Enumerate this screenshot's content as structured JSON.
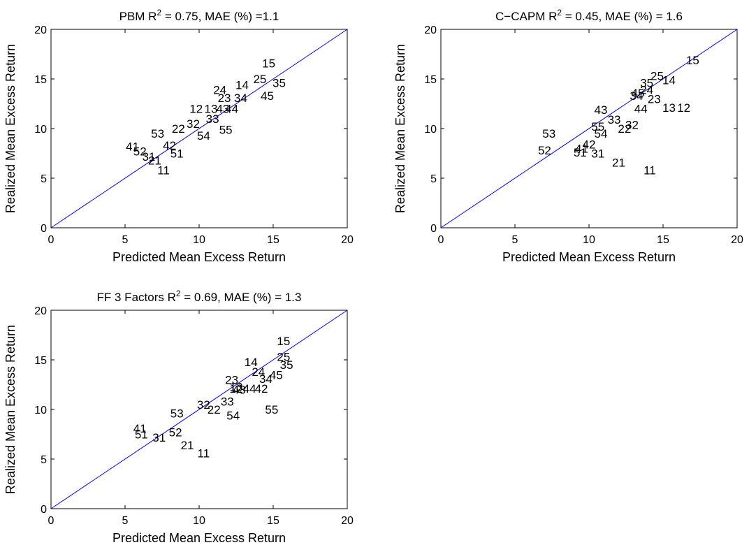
{
  "window": {
    "title": ""
  },
  "chart_data": [
    {
      "type": "scatter",
      "title": {
        "pre": "PBM R",
        "sup": "2",
        "post": " = 0.75,  MAE (%) =1.1"
      },
      "xlabel": "Predicted Mean Excess Return",
      "ylabel": "Realized Mean Excess Return",
      "xlim": [
        0,
        20
      ],
      "ylim": [
        0,
        20
      ],
      "xticks": [
        "0",
        "5",
        "10",
        "15",
        "20"
      ],
      "yticks": [
        "0",
        "5",
        "10",
        "15",
        "20"
      ],
      "reference_line": "45-degree",
      "line_color": "#0000ff",
      "grid": false,
      "points": [
        {
          "label": "11",
          "x": 7.6,
          "y": 5.8
        },
        {
          "label": "12",
          "x": 9.8,
          "y": 12.0
        },
        {
          "label": "13",
          "x": 10.8,
          "y": 12.0
        },
        {
          "label": "14",
          "x": 12.9,
          "y": 14.4
        },
        {
          "label": "15",
          "x": 14.7,
          "y": 16.6
        },
        {
          "label": "21",
          "x": 7.0,
          "y": 6.8
        },
        {
          "label": "22",
          "x": 8.6,
          "y": 10.0
        },
        {
          "label": "23",
          "x": 11.7,
          "y": 13.1
        },
        {
          "label": "24",
          "x": 11.4,
          "y": 13.9
        },
        {
          "label": "25",
          "x": 14.1,
          "y": 15.0
        },
        {
          "label": "31",
          "x": 6.6,
          "y": 7.2
        },
        {
          "label": "32",
          "x": 9.6,
          "y": 10.5
        },
        {
          "label": "33",
          "x": 10.9,
          "y": 11.0
        },
        {
          "label": "34",
          "x": 12.8,
          "y": 13.1
        },
        {
          "label": "35",
          "x": 15.4,
          "y": 14.6
        },
        {
          "label": "41",
          "x": 5.5,
          "y": 8.2
        },
        {
          "label": "42",
          "x": 8.0,
          "y": 8.3
        },
        {
          "label": "43",
          "x": 11.6,
          "y": 12.0
        },
        {
          "label": "44",
          "x": 12.2,
          "y": 12.0
        },
        {
          "label": "45",
          "x": 14.6,
          "y": 13.3
        },
        {
          "label": "51",
          "x": 8.5,
          "y": 7.5
        },
        {
          "label": "52",
          "x": 6.0,
          "y": 7.7
        },
        {
          "label": "53",
          "x": 7.2,
          "y": 9.5
        },
        {
          "label": "54",
          "x": 10.3,
          "y": 9.3
        },
        {
          "label": "55",
          "x": 11.8,
          "y": 9.9
        }
      ]
    },
    {
      "type": "scatter",
      "title": {
        "pre": "C−CAPM R",
        "sup": "2",
        "post": " = 0.45,  MAE (%) = 1.6"
      },
      "xlabel": "Predicted Mean Excess Return",
      "ylabel": "Realized Mean Excess Return",
      "xlim": [
        0,
        20
      ],
      "ylim": [
        0,
        20
      ],
      "xticks": [
        "0",
        "5",
        "10",
        "15",
        "20"
      ],
      "yticks": [
        "0",
        "5",
        "10",
        "15",
        "20"
      ],
      "reference_line": "45-degree",
      "line_color": "#0000ff",
      "grid": false,
      "points": [
        {
          "label": "11",
          "x": 14.1,
          "y": 5.8
        },
        {
          "label": "12",
          "x": 16.4,
          "y": 12.1
        },
        {
          "label": "13",
          "x": 15.4,
          "y": 12.1
        },
        {
          "label": "14",
          "x": 15.4,
          "y": 14.9
        },
        {
          "label": "15",
          "x": 17.0,
          "y": 16.9
        },
        {
          "label": "21",
          "x": 12.0,
          "y": 6.6
        },
        {
          "label": "22",
          "x": 12.4,
          "y": 10.0
        },
        {
          "label": "23",
          "x": 14.4,
          "y": 13.0
        },
        {
          "label": "24",
          "x": 13.9,
          "y": 13.9
        },
        {
          "label": "25",
          "x": 14.6,
          "y": 15.3
        },
        {
          "label": "31",
          "x": 10.6,
          "y": 7.5
        },
        {
          "label": "32",
          "x": 12.9,
          "y": 10.4
        },
        {
          "label": "33",
          "x": 11.7,
          "y": 10.9
        },
        {
          "label": "34",
          "x": 13.2,
          "y": 13.3
        },
        {
          "label": "35",
          "x": 13.9,
          "y": 14.6
        },
        {
          "label": "41",
          "x": 9.5,
          "y": 8.0
        },
        {
          "label": "42",
          "x": 10.0,
          "y": 8.4
        },
        {
          "label": "43",
          "x": 10.8,
          "y": 11.9
        },
        {
          "label": "44",
          "x": 13.5,
          "y": 12.0
        },
        {
          "label": "45",
          "x": 13.3,
          "y": 13.6
        },
        {
          "label": "51",
          "x": 9.4,
          "y": 7.6
        },
        {
          "label": "52",
          "x": 7.0,
          "y": 7.8
        },
        {
          "label": "53",
          "x": 7.3,
          "y": 9.5
        },
        {
          "label": "54",
          "x": 10.8,
          "y": 9.5
        },
        {
          "label": "55",
          "x": 10.6,
          "y": 10.2
        }
      ]
    },
    {
      "type": "scatter",
      "title": {
        "pre": "FF 3 Factors R",
        "sup": "2",
        "post": " = 0.69,  MAE (%) = 1.3"
      },
      "xlabel": "Predicted Mean Excess Return",
      "ylabel": "Realized Mean Excess Return",
      "xlim": [
        0,
        20
      ],
      "ylim": [
        0,
        20
      ],
      "xticks": [
        "0",
        "5",
        "10",
        "15",
        "20"
      ],
      "yticks": [
        "0",
        "5",
        "10",
        "15",
        "20"
      ],
      "reference_line": "45-degree",
      "line_color": "#0000ff",
      "grid": false,
      "points": [
        {
          "label": "11",
          "x": 10.3,
          "y": 5.6
        },
        {
          "label": "12",
          "x": 12.5,
          "y": 12.1
        },
        {
          "label": "13",
          "x": 12.5,
          "y": 12.3
        },
        {
          "label": "14",
          "x": 13.5,
          "y": 14.8
        },
        {
          "label": "15",
          "x": 15.7,
          "y": 16.9
        },
        {
          "label": "21",
          "x": 9.2,
          "y": 6.4
        },
        {
          "label": "22",
          "x": 11.0,
          "y": 10.0
        },
        {
          "label": "23",
          "x": 12.2,
          "y": 13.0
        },
        {
          "label": "24",
          "x": 14.0,
          "y": 13.8
        },
        {
          "label": "25",
          "x": 15.7,
          "y": 15.3
        },
        {
          "label": "31",
          "x": 7.3,
          "y": 7.2
        },
        {
          "label": "32",
          "x": 10.3,
          "y": 10.5
        },
        {
          "label": "33",
          "x": 11.9,
          "y": 10.8
        },
        {
          "label": "34",
          "x": 14.5,
          "y": 13.1
        },
        {
          "label": "35",
          "x": 15.9,
          "y": 14.5
        },
        {
          "label": "41",
          "x": 6.0,
          "y": 8.1
        },
        {
          "label": "42",
          "x": 14.2,
          "y": 12.1
        },
        {
          "label": "43",
          "x": 12.7,
          "y": 12.0
        },
        {
          "label": "44",
          "x": 13.4,
          "y": 12.1
        },
        {
          "label": "45",
          "x": 15.2,
          "y": 13.5
        },
        {
          "label": "51",
          "x": 6.1,
          "y": 7.5
        },
        {
          "label": "52",
          "x": 8.4,
          "y": 7.7
        },
        {
          "label": "53",
          "x": 8.5,
          "y": 9.6
        },
        {
          "label": "54",
          "x": 12.3,
          "y": 9.4
        },
        {
          "label": "55",
          "x": 14.9,
          "y": 10.0
        }
      ]
    }
  ]
}
